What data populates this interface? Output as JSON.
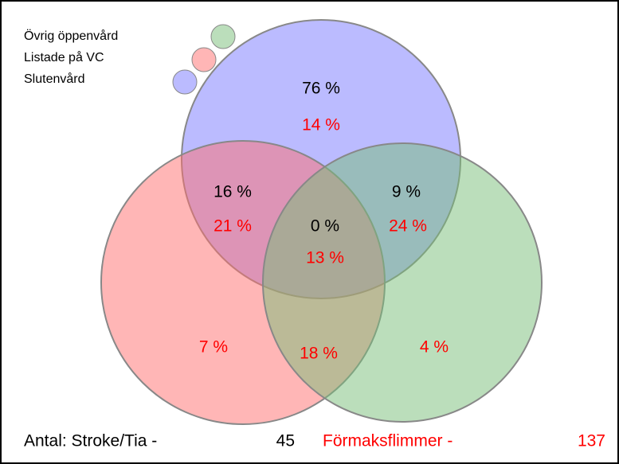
{
  "legend": [
    "Övrig öppenvård",
    "Listade på VC",
    "Slutenvård"
  ],
  "regions": [
    {
      "black": "76 %",
      "red": "14 %"
    },
    {
      "black": "16 %",
      "red": "21 %"
    },
    {
      "black": "0 %",
      "red": "13 %"
    },
    {
      "black": "9 %",
      "red": "24 %"
    },
    {
      "red": "7 %"
    },
    {
      "red": "18 %"
    },
    {
      "red": "4 %"
    }
  ],
  "footer": {
    "label_1": "Antal: Stroke/Tia -",
    "count_1": "45",
    "label_2": "Förmaksflimmer -",
    "count_2": "137"
  }
}
